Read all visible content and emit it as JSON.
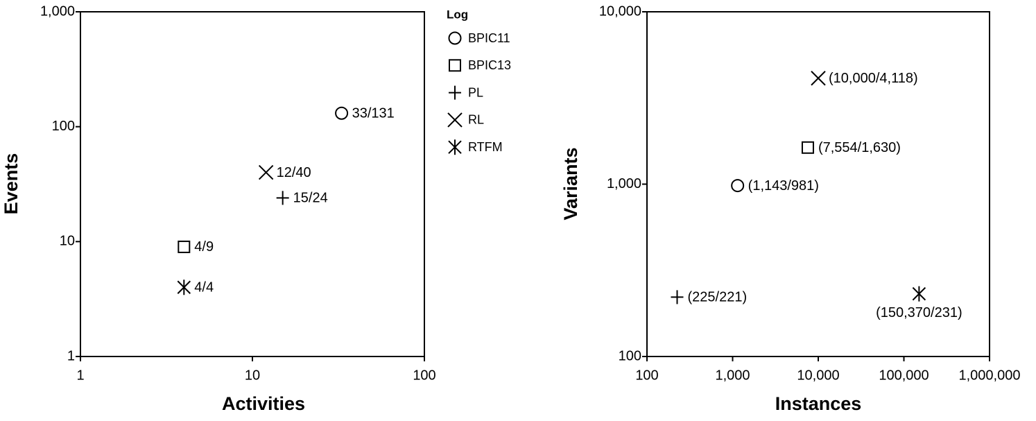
{
  "chart_data": [
    {
      "type": "scatter",
      "xlabel": "Activities",
      "ylabel": "Events",
      "xscale": "log",
      "yscale": "log",
      "xlim": [
        1,
        100
      ],
      "ylim": [
        1,
        1000
      ],
      "xticks": [
        1,
        10,
        100
      ],
      "yticks": [
        1,
        10,
        100,
        {
          "value": 1000,
          "label": "1,000"
        }
      ],
      "legend_title": "Log",
      "series": [
        {
          "name": "BPIC11",
          "marker": "circle",
          "x": [
            33
          ],
          "y": [
            131
          ],
          "value_labels": [
            "33/131"
          ]
        },
        {
          "name": "BPIC13",
          "marker": "square",
          "x": [
            4
          ],
          "y": [
            9
          ],
          "value_labels": [
            "4/9"
          ]
        },
        {
          "name": "PL",
          "marker": "plus",
          "x": [
            15
          ],
          "y": [
            24
          ],
          "value_labels": [
            "15/24"
          ]
        },
        {
          "name": "RL",
          "marker": "cross",
          "x": [
            12
          ],
          "y": [
            40
          ],
          "value_labels": [
            "12/40"
          ]
        },
        {
          "name": "RTFM",
          "marker": "asterisk",
          "x": [
            4
          ],
          "y": [
            4
          ],
          "value_labels": [
            "4/4"
          ]
        }
      ]
    },
    {
      "type": "scatter",
      "xlabel": "Instances",
      "ylabel": "Variants",
      "xscale": "log",
      "yscale": "log",
      "xlim": [
        100,
        1000000
      ],
      "ylim": [
        100,
        10000
      ],
      "xticks": [
        100,
        {
          "value": 1000,
          "label": "1,000"
        },
        {
          "value": 10000,
          "label": "10,000"
        },
        {
          "value": 100000,
          "label": "100,000"
        },
        {
          "value": 1000000,
          "label": "1,000,000"
        }
      ],
      "yticks": [
        100,
        {
          "value": 1000,
          "label": "1,000"
        },
        {
          "value": 10000,
          "label": "10,000"
        }
      ],
      "series": [
        {
          "marker": "circle",
          "x": [
            1143
          ],
          "y": [
            981
          ],
          "value_labels": [
            "(1,143/981)"
          ]
        },
        {
          "marker": "square",
          "x": [
            7554
          ],
          "y": [
            1630
          ],
          "value_labels": [
            "(7,554/1,630)"
          ]
        },
        {
          "marker": "plus",
          "x": [
            225
          ],
          "y": [
            221
          ],
          "value_labels": [
            "(225/221)"
          ]
        },
        {
          "marker": "cross",
          "x": [
            10000
          ],
          "y": [
            4118
          ],
          "value_labels": [
            "(10,000/4,118)"
          ]
        },
        {
          "marker": "asterisk",
          "x": [
            150370
          ],
          "y": [
            231
          ],
          "value_labels": [
            "(150,370/231)"
          ]
        }
      ]
    }
  ]
}
